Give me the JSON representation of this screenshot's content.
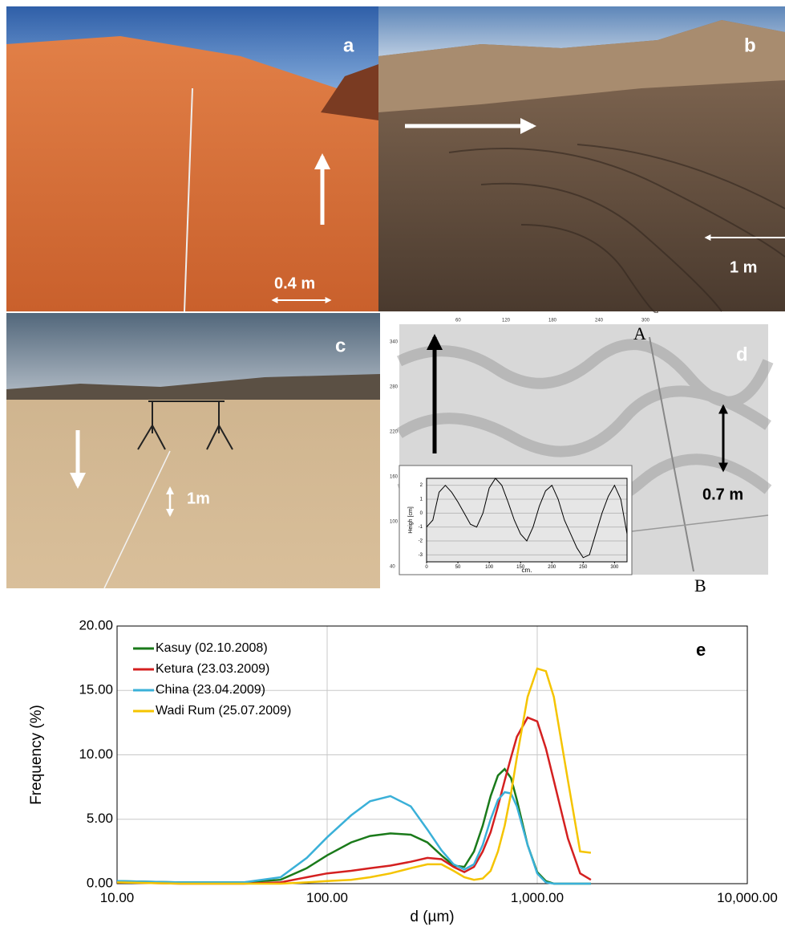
{
  "panels": [
    {
      "label": "a",
      "annotations": [
        "0.4 m"
      ]
    },
    {
      "label": "b",
      "annotations": [
        "1 m"
      ]
    },
    {
      "label": "c",
      "annotations": [
        "1m"
      ]
    },
    {
      "label": "d",
      "annotations": [
        "0.7 m",
        "A",
        "B"
      ],
      "scale_x": [
        "60",
        "120",
        "180",
        "240",
        "300"
      ],
      "scale_y": [
        "340",
        "280",
        "220",
        "160",
        "100",
        "40"
      ]
    }
  ],
  "chart_data": [
    {
      "type": "line",
      "panel_label": "e",
      "xlabel": "d (µm)",
      "ylabel": "Frequency (%)",
      "xscale": "log",
      "grid": true,
      "legend": "upper left",
      "x": [
        10,
        20,
        40,
        60,
        80,
        100,
        130,
        160,
        200,
        250,
        300,
        350,
        400,
        450,
        500,
        550,
        600,
        650,
        700,
        750,
        800,
        900,
        1000,
        1100,
        1200,
        1400,
        1600,
        1800
      ],
      "xlim": [
        10,
        10000
      ],
      "xticks": [
        {
          "value": 10,
          "label": "10.00"
        },
        {
          "value": 100,
          "label": "100.00"
        },
        {
          "value": 1000,
          "label": "1,000.00"
        },
        {
          "value": 10000,
          "label": "10,000.00"
        }
      ],
      "ylim": [
        0,
        20
      ],
      "yticks": [
        {
          "value": 0,
          "label": "0.00"
        },
        {
          "value": 5,
          "label": "5.00"
        },
        {
          "value": 10,
          "label": "10.00"
        },
        {
          "value": 15,
          "label": "15.00"
        },
        {
          "value": 20,
          "label": "20.00"
        }
      ],
      "series": [
        {
          "name": "Kasuy (02.10.2008)",
          "color": "#1a7a1a",
          "values": [
            0.2,
            0.1,
            0.1,
            0.3,
            1.2,
            2.2,
            3.2,
            3.7,
            3.9,
            3.8,
            3.2,
            2.2,
            1.4,
            1.3,
            2.5,
            4.5,
            6.8,
            8.4,
            8.9,
            8.2,
            6.5,
            3.0,
            0.9,
            0.2,
            0,
            0,
            0,
            0
          ]
        },
        {
          "name": "Ketura (23.03.2009)",
          "color": "#d42020",
          "values": [
            0.1,
            0,
            0,
            0.1,
            0.5,
            0.8,
            1.0,
            1.2,
            1.4,
            1.7,
            2.0,
            1.9,
            1.3,
            0.9,
            1.3,
            2.5,
            4.0,
            6.0,
            8.0,
            9.8,
            11.4,
            12.9,
            12.6,
            10.5,
            8.0,
            3.5,
            0.8,
            0.3
          ]
        },
        {
          "name": "China (23.04.2009)",
          "color": "#3ab0d8",
          "values": [
            0.2,
            0.1,
            0.1,
            0.5,
            2.0,
            3.6,
            5.3,
            6.4,
            6.8,
            6.0,
            4.2,
            2.6,
            1.5,
            1.1,
            1.5,
            3.0,
            5.0,
            6.5,
            7.1,
            7.0,
            6.0,
            3.0,
            0.8,
            0.1,
            0,
            0,
            0,
            0
          ]
        },
        {
          "name": "Wadi Rum (25.07.2009)",
          "color": "#f5c400",
          "values": [
            0.1,
            0,
            0,
            0,
            0.1,
            0.2,
            0.3,
            0.5,
            0.8,
            1.2,
            1.5,
            1.5,
            1.0,
            0.5,
            0.3,
            0.4,
            1.0,
            2.5,
            4.5,
            7.0,
            9.8,
            14.5,
            16.7,
            16.5,
            14.5,
            8.0,
            2.5,
            2.4
          ]
        }
      ]
    },
    {
      "type": "line",
      "xlabel": "cm.",
      "ylabel": "Heigh [cm]",
      "grid": true,
      "x": [
        0,
        10,
        20,
        30,
        40,
        50,
        60,
        70,
        80,
        90,
        100,
        110,
        120,
        130,
        140,
        150,
        160,
        170,
        180,
        190,
        200,
        210,
        220,
        230,
        240,
        250,
        260,
        270,
        280,
        290,
        300,
        310,
        320
      ],
      "xlim": [
        0,
        320
      ],
      "xticks": [
        0,
        50,
        100,
        150,
        200,
        250,
        300
      ],
      "ylim": [
        -3.5,
        2.5
      ],
      "yticks": [
        -3,
        -2,
        -1,
        0,
        1,
        2
      ],
      "series": [
        {
          "color": "#000000",
          "values": [
            -1,
            -0.5,
            1.5,
            2,
            1.5,
            0.8,
            0,
            -0.8,
            -1,
            0,
            1.8,
            2.5,
            2,
            0.8,
            -0.5,
            -1.5,
            -2,
            -1,
            0.5,
            1.6,
            2,
            1,
            -0.5,
            -1.5,
            -2.5,
            -3.2,
            -3,
            -1.5,
            0,
            1.2,
            2,
            1,
            -1.5
          ]
        }
      ]
    }
  ]
}
